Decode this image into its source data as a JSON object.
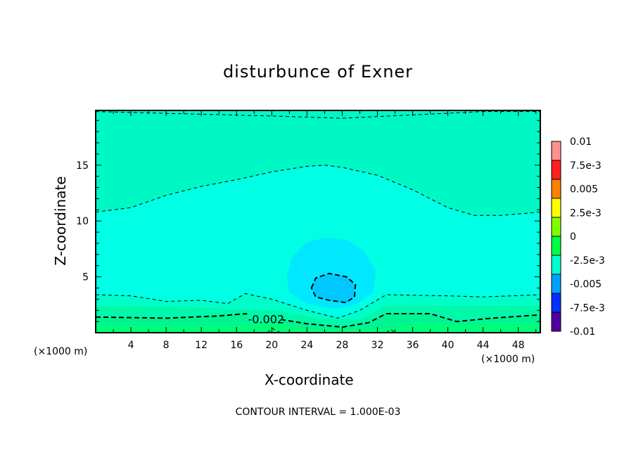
{
  "chart_data": {
    "type": "contour",
    "title": "disturbunce of Exner",
    "xlabel": "X-coordinate",
    "ylabel": "Z-coordinate",
    "x_unit_left": "(×1000 m)",
    "x_unit_right": "(×1000 m)",
    "footer": "CONTOUR INTERVAL = 1.000E-03",
    "xlim": [
      0,
      50.5
    ],
    "ylim": [
      0,
      19.9
    ],
    "xticks": [
      4,
      8,
      12,
      16,
      20,
      24,
      28,
      32,
      36,
      40,
      44,
      48
    ],
    "yticks": [
      5,
      10,
      15
    ],
    "colorbar": {
      "labels": [
        "0.01",
        "7.5e-3",
        "0.005",
        "2.5e-3",
        "0",
        "-2.5e-3",
        "-0.005",
        "-7.5e-3",
        "-0.01"
      ],
      "colors": [
        "#ff9090",
        "#ff2020",
        "#ff8000",
        "#ffff00",
        "#80ff00",
        "#00ff40",
        "#00ffd0",
        "#00a0ff",
        "#0030ff",
        "#5000a0"
      ]
    },
    "fills": [
      {
        "color": "#00ffe4",
        "points": [
          [
            0,
            0
          ],
          [
            50.5,
            0
          ],
          [
            50.5,
            19.9
          ],
          [
            0,
            19.9
          ]
        ]
      },
      {
        "color": "#00f8c4",
        "points": [
          [
            0,
            19.9
          ],
          [
            0,
            10.8
          ],
          [
            4,
            11.2
          ],
          [
            8,
            12.3
          ],
          [
            12,
            13.1
          ],
          [
            16,
            13.7
          ],
          [
            20,
            14.4
          ],
          [
            24,
            14.9
          ],
          [
            26,
            15
          ],
          [
            28,
            14.8
          ],
          [
            32,
            14.1
          ],
          [
            36,
            12.8
          ],
          [
            40,
            11.2
          ],
          [
            43,
            10.5
          ],
          [
            46,
            10.5
          ],
          [
            50.5,
            10.8
          ],
          [
            50.5,
            19.9
          ]
        ]
      },
      {
        "color": "#00ffc8",
        "points": [
          [
            0,
            0
          ],
          [
            0,
            3.4
          ],
          [
            4,
            3.3
          ],
          [
            8,
            2.8
          ],
          [
            12,
            2.9
          ],
          [
            15,
            2.6
          ],
          [
            17,
            3.5
          ],
          [
            20,
            3.0
          ],
          [
            24,
            2.0
          ],
          [
            27.5,
            1.3
          ],
          [
            30,
            2.0
          ],
          [
            33,
            3.4
          ],
          [
            40,
            3.3
          ],
          [
            44,
            3.2
          ],
          [
            50.5,
            3.4
          ],
          [
            50.5,
            0
          ]
        ]
      },
      {
        "color": "#00f8a8",
        "points": [
          [
            0,
            0
          ],
          [
            0,
            2.4
          ],
          [
            10,
            2.3
          ],
          [
            16,
            2.1
          ],
          [
            20,
            2.0
          ],
          [
            26,
            1.2
          ],
          [
            30,
            1.2
          ],
          [
            33,
            2.4
          ],
          [
            50.5,
            2.4
          ],
          [
            50.5,
            0
          ]
        ]
      },
      {
        "color": "#00f490",
        "points": [
          [
            0,
            0
          ],
          [
            0,
            1.4
          ],
          [
            8,
            1.3
          ],
          [
            14,
            1.5
          ],
          [
            17,
            1.7
          ],
          [
            24,
            0.8
          ],
          [
            28,
            0.5
          ],
          [
            31,
            0.9
          ],
          [
            33,
            1.7
          ],
          [
            38,
            1.7
          ],
          [
            41,
            1.0
          ],
          [
            45,
            1.3
          ],
          [
            50.5,
            1.6
          ],
          [
            50.5,
            0
          ]
        ]
      },
      {
        "color": "#00ff78",
        "points": [
          [
            0,
            0
          ],
          [
            0,
            0.6
          ],
          [
            16,
            0.6
          ],
          [
            20,
            0.9
          ],
          [
            24,
            0.3
          ],
          [
            32,
            0.3
          ],
          [
            36,
            0.7
          ],
          [
            50.5,
            0.7
          ],
          [
            50.5,
            0
          ]
        ]
      },
      {
        "color": "#00e8ff",
        "points": [
          [
            21.7,
            5.0
          ],
          [
            22.3,
            6.8
          ],
          [
            24,
            8.1
          ],
          [
            26,
            8.5
          ],
          [
            28.5,
            8.3
          ],
          [
            30.5,
            7.3
          ],
          [
            31.8,
            5.5
          ],
          [
            31.5,
            3.6
          ],
          [
            29.5,
            2.5
          ],
          [
            27,
            2.1
          ],
          [
            24,
            2.6
          ],
          [
            22,
            3.6
          ]
        ]
      },
      {
        "color": "#00c8ff",
        "points": [
          [
            24.5,
            4.0
          ],
          [
            25,
            4.9
          ],
          [
            26.5,
            5.3
          ],
          [
            28.5,
            5.0
          ],
          [
            29.5,
            4.3
          ],
          [
            29.4,
            3.2
          ],
          [
            28.4,
            2.7
          ],
          [
            26.5,
            2.9
          ],
          [
            25,
            3.2
          ]
        ]
      }
    ],
    "contours": [
      {
        "style": "thin",
        "points": [
          [
            0,
            19.8
          ],
          [
            10,
            19.6
          ],
          [
            20,
            19.4
          ],
          [
            28,
            19.2
          ],
          [
            36,
            19.5
          ],
          [
            44,
            19.8
          ],
          [
            50.5,
            19.8
          ]
        ]
      },
      {
        "style": "thin",
        "points": [
          [
            0,
            10.8
          ],
          [
            4,
            11.2
          ],
          [
            8,
            12.3
          ],
          [
            12,
            13.1
          ],
          [
            16,
            13.7
          ],
          [
            20,
            14.4
          ],
          [
            24,
            14.9
          ],
          [
            26,
            15
          ],
          [
            28,
            14.8
          ],
          [
            32,
            14.1
          ],
          [
            36,
            12.8
          ],
          [
            40,
            11.2
          ],
          [
            43,
            10.5
          ],
          [
            46,
            10.5
          ],
          [
            50.5,
            10.8
          ]
        ]
      },
      {
        "style": "thin",
        "points": [
          [
            0,
            3.4
          ],
          [
            4,
            3.3
          ],
          [
            8,
            2.8
          ],
          [
            12,
            2.9
          ],
          [
            15,
            2.6
          ],
          [
            17,
            3.5
          ],
          [
            20,
            3.0
          ],
          [
            24,
            2.0
          ],
          [
            27.5,
            1.3
          ],
          [
            30,
            2.0
          ],
          [
            33,
            3.4
          ],
          [
            40,
            3.3
          ],
          [
            44,
            3.2
          ],
          [
            50.5,
            3.4
          ]
        ]
      },
      {
        "style": "thick",
        "label": "-0.002",
        "points": [
          [
            0,
            1.4
          ],
          [
            8,
            1.3
          ],
          [
            14,
            1.5
          ],
          [
            17,
            1.7
          ],
          [
            24,
            0.8
          ],
          [
            28,
            0.5
          ],
          [
            31,
            0.9
          ],
          [
            33,
            1.7
          ],
          [
            38,
            1.7
          ],
          [
            41,
            1.0
          ],
          [
            45,
            1.3
          ],
          [
            50.5,
            1.6
          ]
        ]
      },
      {
        "style": "thick",
        "points": [
          [
            24.5,
            4.0
          ],
          [
            25,
            4.9
          ],
          [
            26.5,
            5.3
          ],
          [
            28.5,
            5.0
          ],
          [
            29.5,
            4.3
          ],
          [
            29.4,
            3.2
          ],
          [
            28.4,
            2.7
          ],
          [
            26.5,
            2.9
          ],
          [
            25,
            3.2
          ],
          [
            24.5,
            4.0
          ]
        ]
      },
      {
        "style": "thin",
        "points": [
          [
            19.5,
            0
          ],
          [
            20,
            0.4
          ],
          [
            21,
            0
          ]
        ]
      },
      {
        "style": "thin",
        "points": [
          [
            33,
            0
          ],
          [
            33.5,
            0.3
          ],
          [
            34,
            0
          ]
        ]
      }
    ]
  }
}
